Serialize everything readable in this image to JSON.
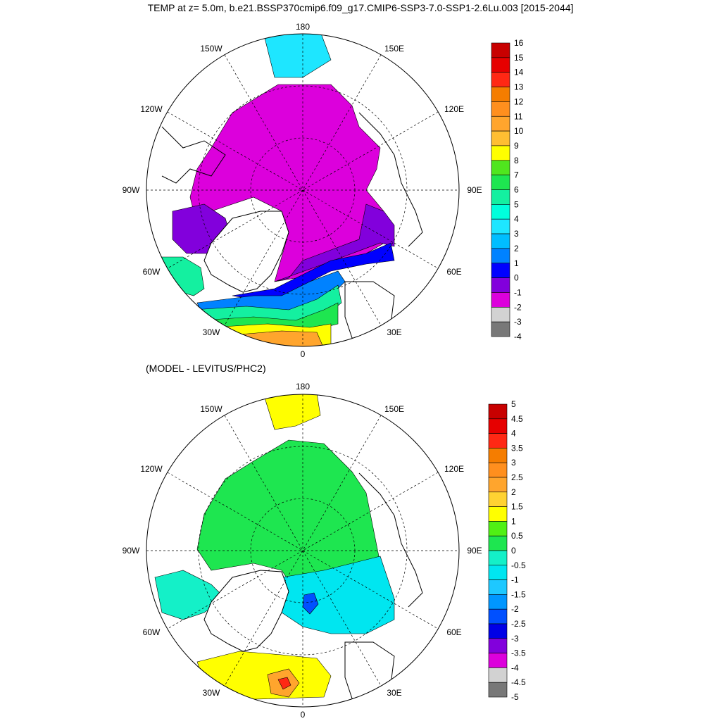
{
  "title": "TEMP at z=   5.0m, b.e21.BSSP370cmip6.f09_g17.CMIP6-SSP3-7.0-SSP1-2.6Lu.003 [2015-2044]",
  "subtitle": "(MODEL - LEVITUS/PHC2)",
  "longitude_labels": {
    "lon_180": "180",
    "lon_150W": "150W",
    "lon_150E": "150E",
    "lon_120W": "120W",
    "lon_120E": "120E",
    "lon_90W": "90W",
    "lon_90E": "90E",
    "lon_60W": "60W",
    "lon_60E": "60E",
    "lon_30W": "30W",
    "lon_30E": "30E",
    "lon_0": "0"
  },
  "colorbars": {
    "temperature": {
      "labels": [
        "16",
        "15",
        "14",
        "13",
        "12",
        "11",
        "10",
        "9",
        "8",
        "7",
        "6",
        "5",
        "4",
        "3",
        "2",
        "1",
        "0",
        "-1",
        "-2",
        "-3",
        "-4"
      ],
      "colors": [
        "#c80000",
        "#e60000",
        "#ff2814",
        "#f57d00",
        "#ff8f1e",
        "#ffa52d",
        "#ffbe32",
        "#ffff00",
        "#50e61e",
        "#1ee650",
        "#14f0a0",
        "#00ffdc",
        "#1ee6ff",
        "#00beff",
        "#0082ff",
        "#0000ff",
        "#8200dc",
        "#dc00dc",
        "#d2d2d2",
        "#787878"
      ]
    },
    "difference": {
      "labels": [
        "5",
        "4.5",
        "4",
        "3.5",
        "3",
        "2.5",
        "2",
        "1.5",
        "1",
        "0.5",
        "0",
        "-0.5",
        "-1",
        "-1.5",
        "-2",
        "-2.5",
        "-3",
        "-3.5",
        "-4",
        "-4.5",
        "-5"
      ],
      "colors": [
        "#c80000",
        "#e60000",
        "#ff2814",
        "#f57d00",
        "#ff8f1e",
        "#ffa52d",
        "#ffd232",
        "#ffff00",
        "#50f014",
        "#1ee650",
        "#14f0c8",
        "#00e6f0",
        "#1ec8ff",
        "#0096ff",
        "#0050ff",
        "#0000e6",
        "#8200dc",
        "#dc00dc",
        "#d2d2d2",
        "#787878"
      ]
    }
  },
  "map_colors": {
    "top": {
      "ocean_base": "#dc00dc",
      "ring_minus1": "#8200dc",
      "ring_zero": "#0000ff",
      "atlantic_1": "#0082ff",
      "atlantic_3": "#14f0a0",
      "atlantic_6": "#1ee650",
      "atlantic_8": "#ffff00",
      "atlantic_10": "#ffbe32",
      "atlantic_11": "#ffa52d",
      "pacific": "#1ee6ff",
      "hudson": "#8200dc",
      "land": "#ffffff"
    },
    "bottom": {
      "ocean_base": "#1ee650",
      "shelf": "#14f0c8",
      "barents": "#00e6f0",
      "cold_spot": "#0050ff",
      "atlantic_warm": "#ffff00",
      "atlantic_hot": "#ffa52d",
      "atlantic_core": "#ff2814",
      "pacific": "#ffff00",
      "land": "#ffffff"
    }
  }
}
